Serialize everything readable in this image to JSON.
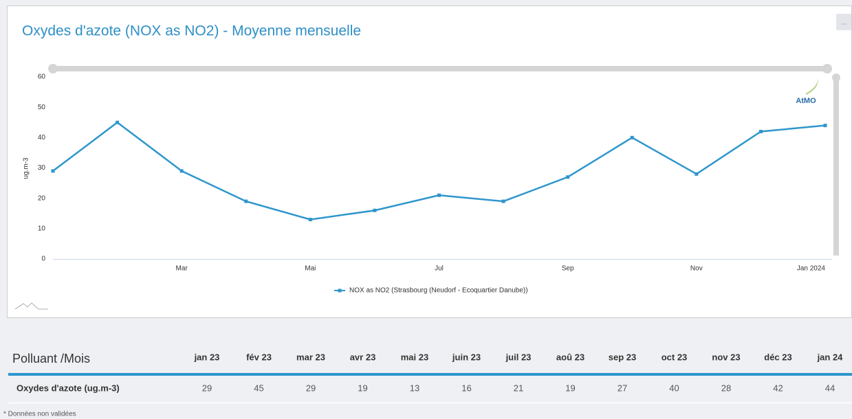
{
  "chart_data": {
    "type": "line",
    "title": "Oxydes d'azote (NOX as NO2) - Moyenne mensuelle",
    "y_label": "ug.m-3",
    "categories": [
      null,
      null,
      "Mar",
      null,
      "Mai",
      null,
      "Jul",
      null,
      "Sep",
      null,
      "Nov",
      null,
      "Jan 2024"
    ],
    "series": [
      {
        "name": "NOX as NO2 (Strasbourg (Neudorf - Ecoquartier Danube))",
        "color": "#2e96cc",
        "values": [
          29,
          45,
          29,
          19,
          13,
          16,
          21,
          19,
          27,
          40,
          28,
          42,
          44
        ]
      }
    ],
    "ylim": [
      0,
      60
    ],
    "yticks": [
      0,
      10,
      20,
      30,
      40,
      50,
      60
    ],
    "grid": false,
    "legend": "bottom"
  },
  "logo": "AtMO",
  "menu_button": "...",
  "table": {
    "header": [
      "Polluant /Mois",
      "jan 23",
      "fév 23",
      "mar 23",
      "avr 23",
      "mai 23",
      "juin 23",
      "juil 23",
      "aoû 23",
      "sep 23",
      "oct 23",
      "nov 23",
      "déc 23",
      "jan 24"
    ],
    "rows": [
      [
        "Oxydes d'azote (ug.m-3)",
        29,
        45,
        29,
        19,
        13,
        16,
        21,
        19,
        27,
        40,
        28,
        42,
        44
      ]
    ]
  },
  "footnote": "* Données non validées"
}
